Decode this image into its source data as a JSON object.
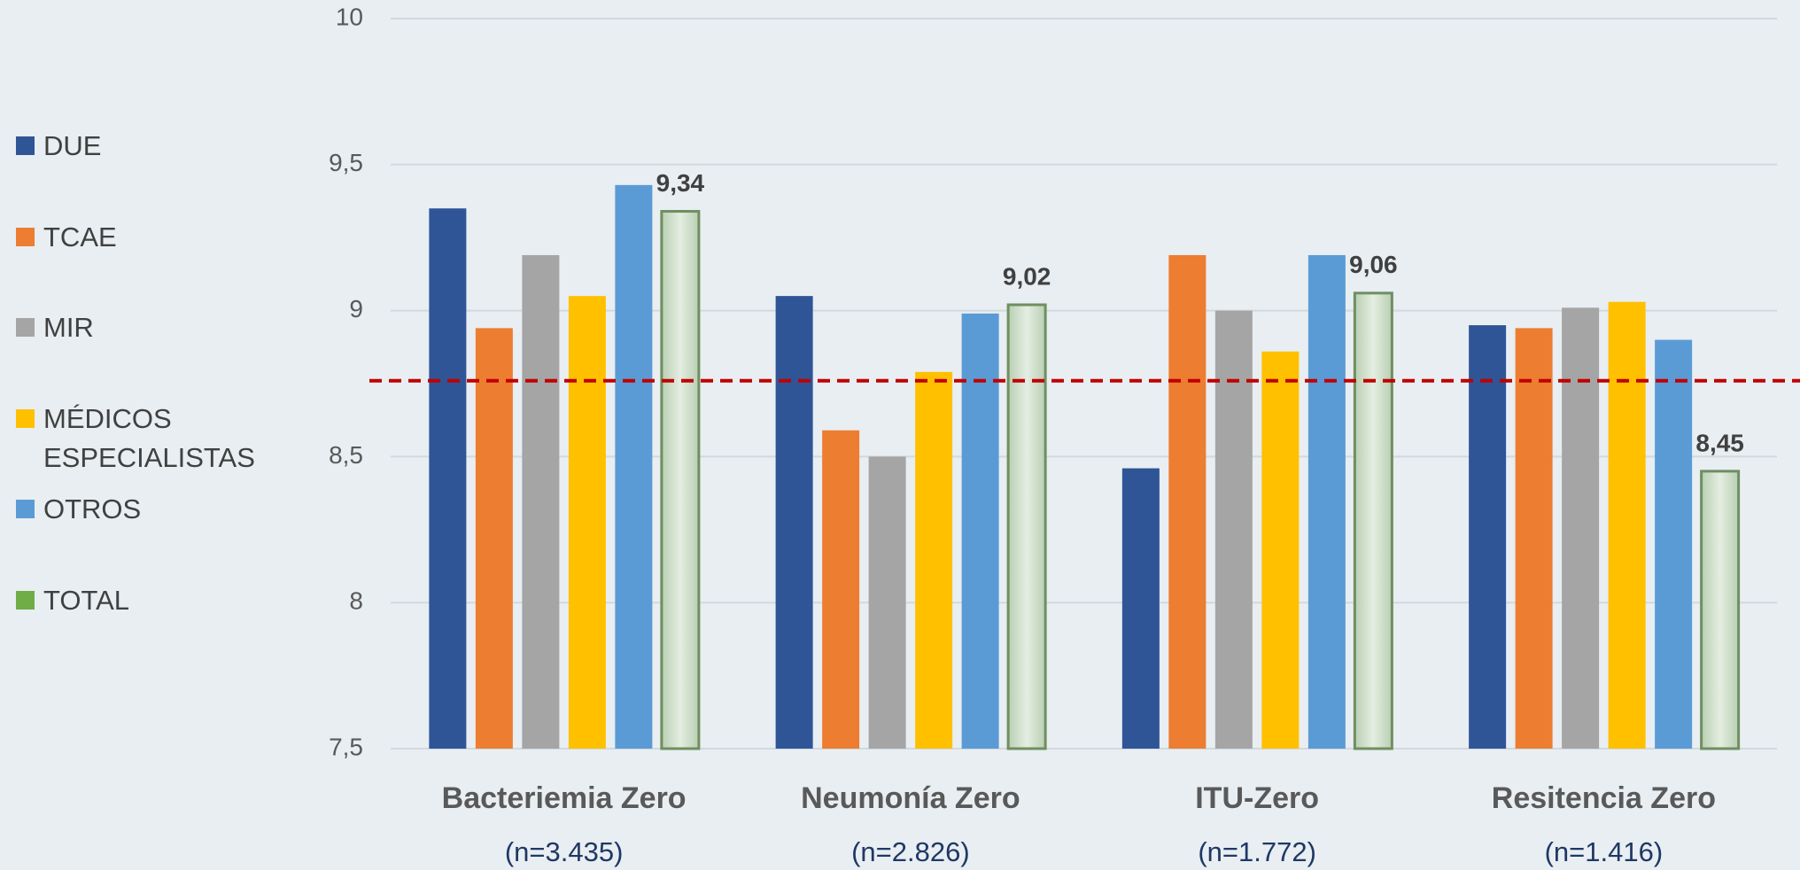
{
  "chart_data": {
    "type": "bar",
    "categories": [
      "Bacteriemia Zero",
      "Neumonía Zero",
      "ITU-Zero",
      "Resitencia Zero"
    ],
    "category_counts": [
      "(n=3.435)",
      "(n=2.826)",
      "(n=1.772)",
      "(n=1.416)"
    ],
    "series": [
      {
        "name": "DUE",
        "color": "#2f5597",
        "values": [
          9.35,
          9.05,
          8.46,
          8.95
        ]
      },
      {
        "name": "TCAE",
        "color": "#ed7d31",
        "values": [
          8.94,
          8.59,
          9.19,
          8.94
        ]
      },
      {
        "name": "MIR",
        "color": "#a5a5a5",
        "values": [
          9.19,
          8.5,
          9.0,
          9.01
        ]
      },
      {
        "name": "MÉDICOS ESPECIALISTAS",
        "color": "#ffc000",
        "values": [
          9.05,
          8.79,
          8.86,
          9.03
        ]
      },
      {
        "name": "OTROS",
        "color": "#5b9bd5",
        "values": [
          9.43,
          8.99,
          9.19,
          8.9
        ]
      },
      {
        "name": "TOTAL",
        "color": "#70ad47",
        "values": [
          9.34,
          9.02,
          9.06,
          8.45
        ],
        "value_labels": [
          "9,34",
          "9,02",
          "9,06",
          "8,45"
        ]
      }
    ],
    "reference_line": 8.76,
    "reference_color": "#c00000",
    "ylim": [
      7.5,
      10
    ],
    "yticks": [
      {
        "value": 7.5,
        "label": "7,5"
      },
      8,
      {
        "value": 8.5,
        "label": "8,5"
      },
      9,
      {
        "value": 9.5,
        "label": "9,5"
      },
      10
    ],
    "grid": true,
    "legend": "left"
  }
}
